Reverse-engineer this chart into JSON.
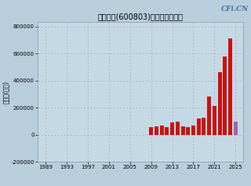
{
  "title": "新奥股份(600803)净利润（万元）",
  "watermark": "CFi.CN",
  "ylabel": "净利润(万元)",
  "xlim": [
    1987.5,
    2026.5
  ],
  "ylim": [
    -200000,
    830000
  ],
  "yticks": [
    -200000,
    0,
    200000,
    400000,
    600000,
    800000
  ],
  "xticks": [
    1989,
    1993,
    1997,
    2001,
    2005,
    2009,
    2013,
    2017,
    2021,
    2025
  ],
  "bg_color": "#b8cedd",
  "plot_bg_color": "#c5d9e5",
  "grid_color": "#9ab0be",
  "years": [
    1989,
    1990,
    1991,
    1992,
    1993,
    1994,
    1995,
    1996,
    1997,
    1998,
    1999,
    2000,
    2001,
    2002,
    2003,
    2004,
    2005,
    2006,
    2007,
    2008,
    2009,
    2010,
    2011,
    2012,
    2013,
    2014,
    2015,
    2016,
    2017,
    2018,
    2019,
    2020,
    2021,
    2022,
    2023,
    2024,
    2025
  ],
  "values": [
    300,
    400,
    500,
    600,
    800,
    1000,
    900,
    700,
    500,
    300,
    200,
    100,
    -800,
    -1500,
    -1000,
    -500,
    300,
    400,
    600,
    300,
    55000,
    60000,
    65000,
    58000,
    90000,
    95000,
    60000,
    55000,
    65000,
    120000,
    125000,
    280000,
    210000,
    460000,
    580000,
    710000,
    95000
  ],
  "colors": [
    "#cc1111",
    "#cc1111",
    "#cc1111",
    "#cc1111",
    "#cc1111",
    "#cc1111",
    "#cc1111",
    "#cc1111",
    "#cc1111",
    "#cc1111",
    "#cc1111",
    "#cc1111",
    "#cc1111",
    "#cc1111",
    "#cc1111",
    "#cc1111",
    "#cc1111",
    "#cc1111",
    "#cc1111",
    "#cc1111",
    "#cc1111",
    "#cc1111",
    "#cc1111",
    "#cc1111",
    "#cc1111",
    "#cc1111",
    "#cc1111",
    "#cc1111",
    "#cc1111",
    "#cc1111",
    "#cc1111",
    "#cc1111",
    "#cc1111",
    "#cc1111",
    "#cc1111",
    "#cc1111",
    "#9966aa"
  ],
  "title_fontsize": 7,
  "tick_fontsize": 5,
  "ylabel_fontsize": 5.5,
  "watermark_fontsize": 6.5,
  "watermark_color": "#4477aa"
}
